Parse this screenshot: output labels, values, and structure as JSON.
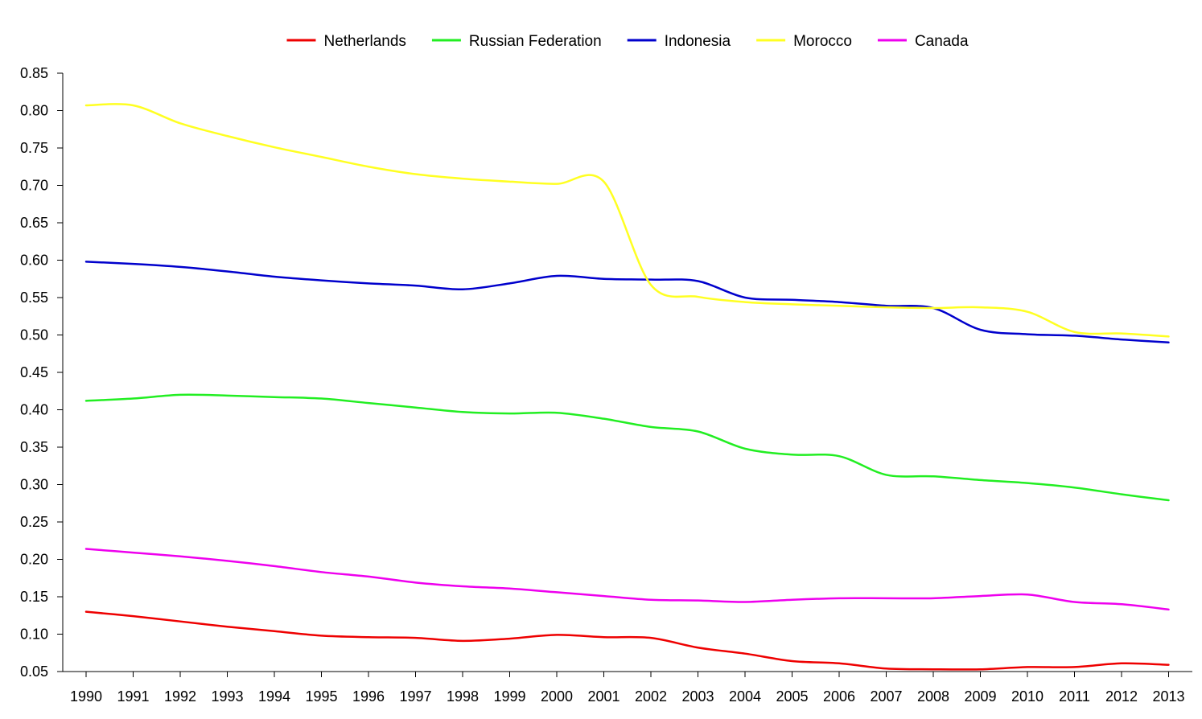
{
  "chart_data": {
    "type": "line",
    "title": "",
    "xlabel": "",
    "ylabel": "",
    "x": [
      "1990",
      "1991",
      "1992",
      "1993",
      "1994",
      "1995",
      "1996",
      "1997",
      "1998",
      "1999",
      "2000",
      "2001",
      "2002",
      "2003",
      "2004",
      "2005",
      "2006",
      "2007",
      "2008",
      "2009",
      "2010",
      "2011",
      "2012",
      "2013"
    ],
    "ylim": [
      0.05,
      0.85
    ],
    "yticks": [
      "0.05",
      "0.10",
      "0.15",
      "0.20",
      "0.25",
      "0.30",
      "0.35",
      "0.40",
      "0.45",
      "0.50",
      "0.55",
      "0.60",
      "0.65",
      "0.70",
      "0.75",
      "0.80",
      "0.85"
    ],
    "grid": false,
    "legend_position": "top-center",
    "series": [
      {
        "name": "Netherlands",
        "color": "#ee0000",
        "values": [
          0.13,
          0.124,
          0.117,
          0.11,
          0.104,
          0.098,
          0.096,
          0.095,
          0.091,
          0.094,
          0.099,
          0.096,
          0.095,
          0.082,
          0.074,
          0.064,
          0.061,
          0.054,
          0.053,
          0.053,
          0.056,
          0.056,
          0.061,
          0.059
        ]
      },
      {
        "name": "Russian Federation",
        "color": "#22ee22",
        "values": [
          0.412,
          0.415,
          0.42,
          0.419,
          0.417,
          0.415,
          0.409,
          0.403,
          0.397,
          0.395,
          0.396,
          0.388,
          0.377,
          0.371,
          0.348,
          0.34,
          0.338,
          0.313,
          0.311,
          0.306,
          0.302,
          0.296,
          0.287,
          0.279
        ]
      },
      {
        "name": "Indonesia",
        "color": "#0000cc",
        "values": [
          0.598,
          0.595,
          0.591,
          0.585,
          0.578,
          0.573,
          0.569,
          0.566,
          0.561,
          0.569,
          0.579,
          0.575,
          0.574,
          0.572,
          0.55,
          0.547,
          0.544,
          0.539,
          0.536,
          0.507,
          0.501,
          0.499,
          0.494,
          0.49
        ]
      },
      {
        "name": "Morocco",
        "color": "#ffff22",
        "values": [
          0.807,
          0.807,
          0.783,
          0.766,
          0.751,
          0.738,
          0.725,
          0.715,
          0.709,
          0.705,
          0.702,
          0.705,
          0.567,
          0.551,
          0.544,
          0.541,
          0.539,
          0.537,
          0.536,
          0.537,
          0.531,
          0.504,
          0.502,
          0.498
        ]
      },
      {
        "name": "Canada",
        "color": "#ee00ee",
        "values": [
          0.214,
          0.209,
          0.204,
          0.198,
          0.191,
          0.183,
          0.177,
          0.169,
          0.164,
          0.161,
          0.156,
          0.151,
          0.146,
          0.145,
          0.143,
          0.146,
          0.148,
          0.148,
          0.148,
          0.151,
          0.153,
          0.143,
          0.14,
          0.133
        ]
      }
    ]
  }
}
